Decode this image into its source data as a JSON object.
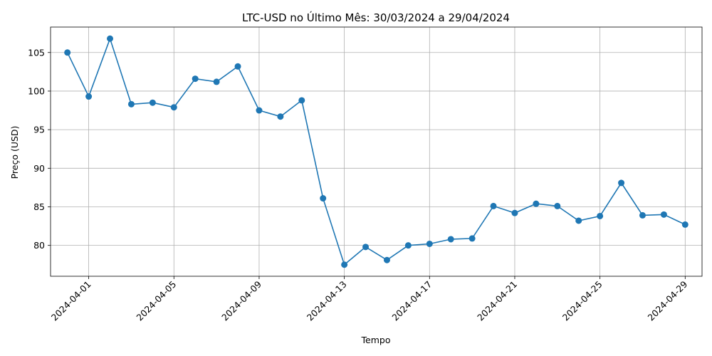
{
  "chart_data": {
    "type": "line",
    "title": "LTC-USD no Último Mês: 30/03/2024 a 29/04/2024",
    "xlabel": "Tempo",
    "ylabel": "Preço (USD)",
    "x": [
      "2024-03-31",
      "2024-04-01",
      "2024-04-02",
      "2024-04-03",
      "2024-04-04",
      "2024-04-05",
      "2024-04-06",
      "2024-04-07",
      "2024-04-08",
      "2024-04-09",
      "2024-04-10",
      "2024-04-11",
      "2024-04-12",
      "2024-04-13",
      "2024-04-14",
      "2024-04-15",
      "2024-04-16",
      "2024-04-17",
      "2024-04-18",
      "2024-04-19",
      "2024-04-20",
      "2024-04-21",
      "2024-04-22",
      "2024-04-23",
      "2024-04-24",
      "2024-04-25",
      "2024-04-26",
      "2024-04-27",
      "2024-04-28",
      "2024-04-29"
    ],
    "series": [
      {
        "values": [
          105.0,
          99.3,
          106.8,
          98.3,
          98.5,
          97.9,
          101.6,
          101.2,
          103.2,
          97.5,
          96.7,
          98.8,
          86.1,
          77.5,
          79.8,
          78.1,
          80.0,
          80.2,
          80.8,
          80.9,
          85.1,
          84.2,
          85.4,
          85.1,
          83.2,
          83.8,
          88.1,
          83.9,
          84.0,
          82.7
        ],
        "color": "#1f77b4"
      }
    ],
    "x_ticks": [
      "2024-04-01",
      "2024-04-05",
      "2024-04-09",
      "2024-04-13",
      "2024-04-17",
      "2024-04-21",
      "2024-04-25",
      "2024-04-29"
    ],
    "xlim": [
      "2024-03-30T05:00",
      "2024-04-29T19:00"
    ],
    "y_ticks": [
      80,
      85,
      90,
      95,
      100,
      105
    ],
    "ylim": [
      76.0,
      108.3
    ],
    "grid": true,
    "legend": "none"
  }
}
